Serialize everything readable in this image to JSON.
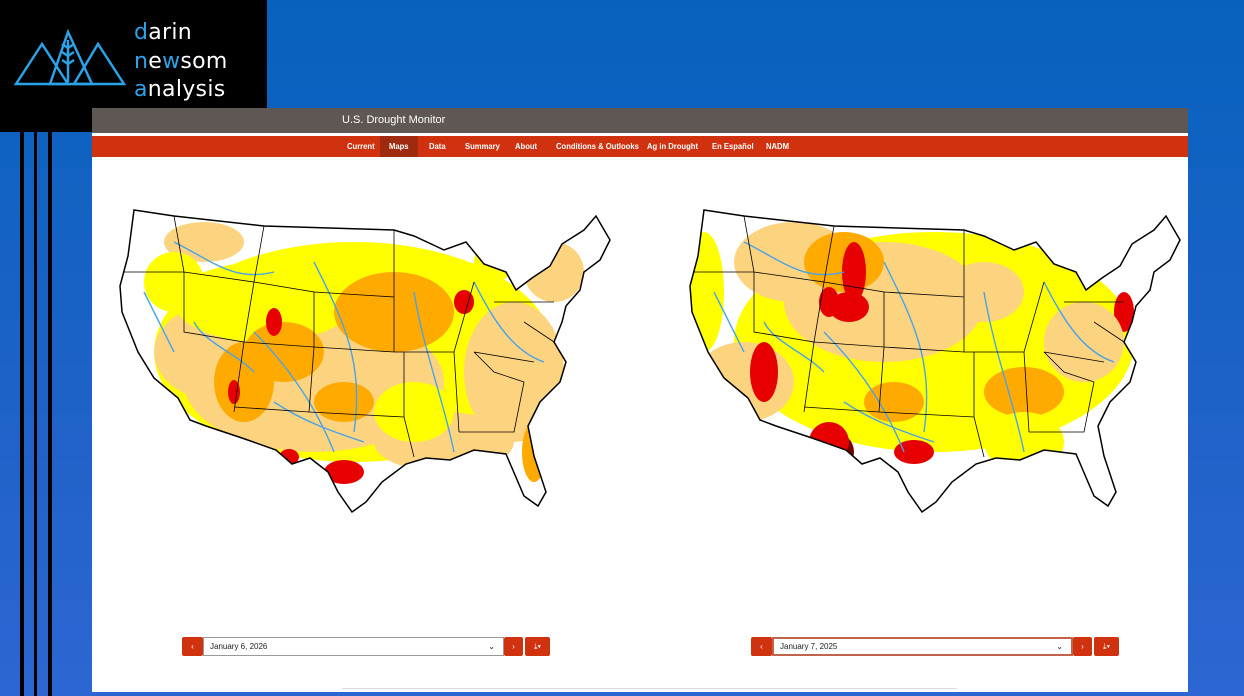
{
  "logo": {
    "lines": [
      [
        "d",
        "arin"
      ],
      [
        "n",
        "e",
        "w",
        "som"
      ],
      [
        "a",
        "nalysis"
      ]
    ]
  },
  "site": {
    "title": "U.S. Drought Monitor",
    "nav": [
      "Current",
      "Maps",
      "Data",
      "Summary",
      "About",
      "Conditions & Outlooks",
      "Ag in Drought",
      "En Español",
      "NADM"
    ],
    "active_nav": "Maps"
  },
  "maps": [
    {
      "date": "January 6, 2026"
    },
    {
      "date": "January 7, 2025"
    }
  ]
}
